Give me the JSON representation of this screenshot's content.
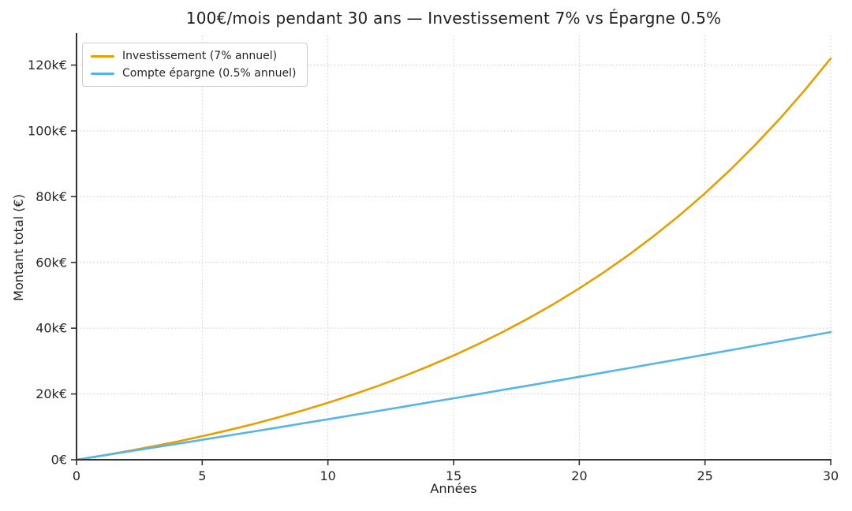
{
  "page": {
    "background": "#ffffff"
  },
  "chart_data": {
    "type": "line",
    "title": "100€/mois pendant 30 ans — Investissement 7% vs Épargne 0.5%",
    "xlabel": "Années",
    "ylabel": "Montant total (€)",
    "xlim": [
      0,
      30
    ],
    "ylim": [
      0,
      129000
    ],
    "x_ticks": [
      0,
      5,
      10,
      15,
      20,
      25,
      30
    ],
    "x_tick_labels": [
      "0",
      "5",
      "10",
      "15",
      "20",
      "25",
      "30"
    ],
    "y_ticks": [
      0,
      20000,
      40000,
      60000,
      80000,
      100000,
      120000
    ],
    "y_tick_labels": [
      "0€",
      "20k€",
      "40k€",
      "60k€",
      "80k€",
      "100k€",
      "120k€"
    ],
    "grid": "dotted",
    "legend_position": "upper-left",
    "x": [
      0,
      1,
      2,
      3,
      4,
      5,
      6,
      7,
      8,
      9,
      10,
      11,
      12,
      13,
      14,
      15,
      16,
      17,
      18,
      19,
      20,
      21,
      22,
      23,
      24,
      25,
      26,
      27,
      28,
      29,
      30
    ],
    "series": [
      {
        "name": "Investissement (7% annuel)",
        "color": "#E69F00",
        "values": [
          0,
          1239,
          2568,
          3993,
          5521,
          7159,
          8916,
          10800,
          12820,
          14987,
          17309,
          19800,
          22471,
          25334,
          28405,
          31699,
          35230,
          39017,
          43077,
          47431,
          52100,
          57106,
          62475,
          68231,
          74404,
          81023,
          88120,
          95731,
          103892,
          112643,
          121997
        ]
      },
      {
        "name": "Compte épargne (0.5% annuel)",
        "color": "#56B4E9",
        "values": [
          0,
          1203,
          2412,
          3626,
          4847,
          6074,
          7308,
          8547,
          9792,
          11044,
          12302,
          13566,
          14837,
          16114,
          17397,
          18687,
          19984,
          21286,
          22596,
          23912,
          25234,
          26563,
          27899,
          29241,
          30591,
          31947,
          33310,
          34679,
          36056,
          37439,
          38829
        ]
      }
    ]
  },
  "style_colors": {
    "grid": "#c9c9c9",
    "spine": "#333333",
    "tick_text": "#262626"
  }
}
